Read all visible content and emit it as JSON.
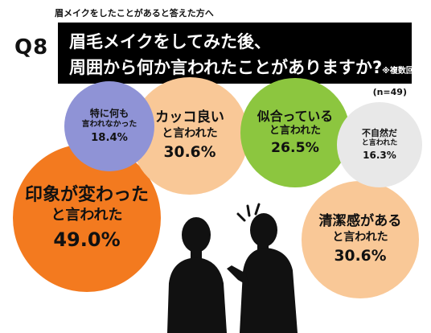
{
  "header": {
    "subtitle": "眉メイクをしたことがあると答えた方へ",
    "q_badge": "Q8",
    "question_line1": "眉毛メイクをしてみた後、",
    "question_line2": "周囲から何か言われたことがありますか?",
    "question_note": "※複数回答",
    "n_label": "(n=49)"
  },
  "chart_data": {
    "type": "bubble",
    "title": "眉毛メイクをしてみた後、周囲から何か言われたことがありますか?",
    "unit": "%",
    "categories": [
      "印象が変わったと言われた",
      "カッコ良いと言われた",
      "清潔感があると言われた",
      "似合っていると言われた",
      "特に何も言われなかった",
      "不自然だと言われた"
    ],
    "values": [
      49.0,
      30.6,
      30.6,
      26.5,
      18.4,
      16.3
    ],
    "labels": [
      {
        "line1": "印象が変わった",
        "line2": "と言われた",
        "value_text": "49.0%"
      },
      {
        "line1": "カッコ良い",
        "line2": "と言われた",
        "value_text": "30.6%"
      },
      {
        "line1": "清潔感がある",
        "line2": "と言われた",
        "value_text": "30.6%"
      },
      {
        "line1": "似合っている",
        "line2": "と言われた",
        "value_text": "26.5%"
      },
      {
        "line1": "特に何も",
        "line2": "言われなかった",
        "value_text": "18.4%"
      },
      {
        "line1": "不自然だ",
        "line2": "と言われた",
        "value_text": "16.3%"
      }
    ],
    "colors": [
      "#f37a1f",
      "#f9c897",
      "#f9c897",
      "#8cc63f",
      "#8f93d6",
      "#e8e8e8"
    ]
  }
}
